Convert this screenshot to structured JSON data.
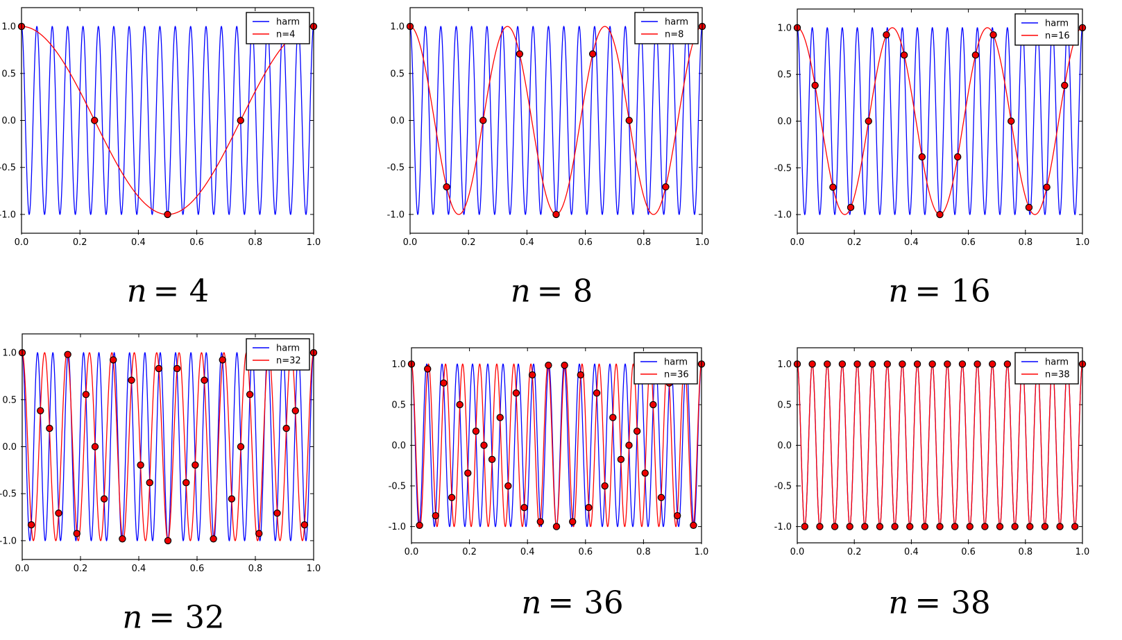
{
  "figure": {
    "background": "#ffffff"
  },
  "chart_data": {
    "type": "line",
    "description_visible": "",
    "harmonic_frequency": 19,
    "harm_formula": "cos(2*pi*19*t)",
    "alias_formula": "cos(2*pi*m*t)",
    "sample_formula": "t_k = k/n, y_k = cos(2*pi*19*k/n), k = 0..n",
    "x_range": [
      0,
      1
    ],
    "ylim": [
      -1.2,
      1.2
    ],
    "x_ticks": [
      "0.0",
      "0.2",
      "0.4",
      "0.6",
      "0.8",
      "1.0"
    ],
    "y_ticks": [
      "1.0",
      "0.5",
      "0.0",
      "-0.5",
      "-1.0"
    ],
    "grid": false,
    "legend_position": "upper right",
    "colors": {
      "harm_line": "#0000ff",
      "alias_line": "#ff0000",
      "marker_fill": "#ee0000",
      "marker_edge": "#000000",
      "axis": "#000000",
      "text": "#000000",
      "legend_border": "#000000",
      "background": "#ffffff"
    },
    "subplots": [
      {
        "n": 4,
        "alias_frequency": 1,
        "legend": [
          "harm",
          "n=4"
        ],
        "caption_lhs": "n",
        "caption_rhs": "= 4",
        "sample_x": "k/4, k=0..4",
        "sample_y": [
          1,
          0,
          -1,
          0,
          1
        ]
      },
      {
        "n": 8,
        "alias_frequency": 3,
        "legend": [
          "harm",
          "n=8"
        ],
        "caption_lhs": "n",
        "caption_rhs": "= 8",
        "sample_x": "k/8, k=0..8",
        "sample_y": [
          1,
          -0.707,
          0,
          0.707,
          -1,
          0.707,
          0,
          -0.707,
          1
        ]
      },
      {
        "n": 16,
        "alias_frequency": 3,
        "legend": [
          "harm",
          "n=16"
        ],
        "caption_lhs": "n",
        "caption_rhs": "= 16",
        "sample_x": "k/16, k=0..16",
        "sample_y": [
          1,
          0.383,
          -0.707,
          -0.924,
          0,
          0.924,
          0.707,
          -0.383,
          -1,
          -0.383,
          0.707,
          0.924,
          0,
          -0.924,
          -0.707,
          0.383,
          1
        ]
      },
      {
        "n": 32,
        "alias_frequency": 13,
        "legend": [
          "harm",
          "n=32"
        ],
        "caption_lhs": "n",
        "caption_rhs": "= 32",
        "sample_x": "k/32, k=0..32",
        "sample_y": "cos(2*pi*19*k/32)"
      },
      {
        "n": 36,
        "alias_frequency": 17,
        "legend": [
          "harm",
          "n=36"
        ],
        "caption_lhs": "n",
        "caption_rhs": "= 36",
        "sample_x": "k/36, k=0..36",
        "sample_y": "cos(2*pi*19*k/36)"
      },
      {
        "n": 38,
        "alias_frequency": 19,
        "legend": [
          "harm",
          "n=38"
        ],
        "caption_lhs": "n",
        "caption_rhs": "= 38",
        "sample_x": "k/38, k=0..38",
        "sample_y": "cos(2*pi*19*k/38) = (-1)^k"
      }
    ]
  }
}
